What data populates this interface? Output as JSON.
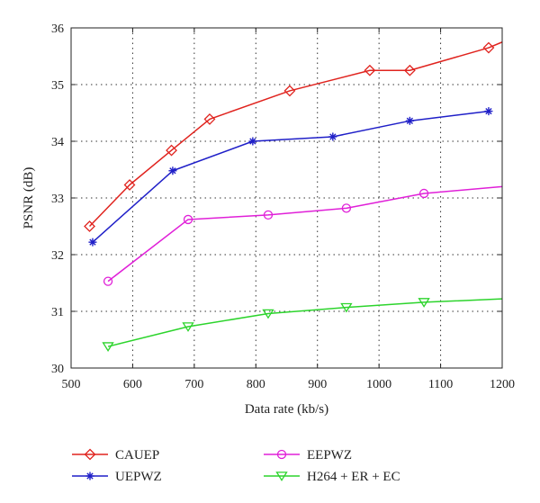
{
  "chart_data": {
    "type": "line",
    "title": "",
    "xlabel": "Data rate (kb/s)",
    "ylabel": "PSNR (dB)",
    "xlim": [
      500,
      1200
    ],
    "ylim": [
      30,
      36
    ],
    "xticks": [
      500,
      600,
      700,
      800,
      900,
      1000,
      1100,
      1200
    ],
    "yticks": [
      30,
      31,
      32,
      33,
      34,
      35,
      36
    ],
    "grid": true,
    "legend_position": "bottom",
    "series": [
      {
        "name": "CAUEP",
        "color": "#e0231e",
        "marker": "diamond",
        "x": [
          530,
          595,
          663,
          725,
          855,
          985,
          1050,
          1178,
          1200
        ],
        "y": [
          32.5,
          33.23,
          33.84,
          34.39,
          34.89,
          35.25,
          35.25,
          35.65,
          35.75
        ],
        "marked": [
          true,
          true,
          true,
          true,
          true,
          true,
          true,
          true,
          false
        ]
      },
      {
        "name": "UEPWZ",
        "color": "#1f1fc8",
        "marker": "star",
        "x": [
          535,
          665,
          795,
          925,
          1050,
          1178
        ],
        "y": [
          32.22,
          33.48,
          34.0,
          34.08,
          34.36,
          34.53
        ],
        "marked": [
          true,
          true,
          true,
          true,
          true,
          true
        ]
      },
      {
        "name": "EEPWZ",
        "color": "#e020d8",
        "marker": "circle",
        "x": [
          560,
          690,
          820,
          947,
          1073,
          1200
        ],
        "y": [
          31.53,
          32.62,
          32.7,
          32.82,
          33.08,
          33.2
        ],
        "marked": [
          true,
          true,
          true,
          true,
          true,
          false
        ]
      },
      {
        "name": "H264 + ER + EC",
        "color": "#2cd42c",
        "marker": "triangle-down",
        "x": [
          560,
          690,
          820,
          947,
          1073,
          1200
        ],
        "y": [
          30.38,
          30.73,
          30.96,
          31.07,
          31.16,
          31.22
        ],
        "marked": [
          true,
          true,
          true,
          true,
          true,
          false
        ]
      }
    ]
  }
}
